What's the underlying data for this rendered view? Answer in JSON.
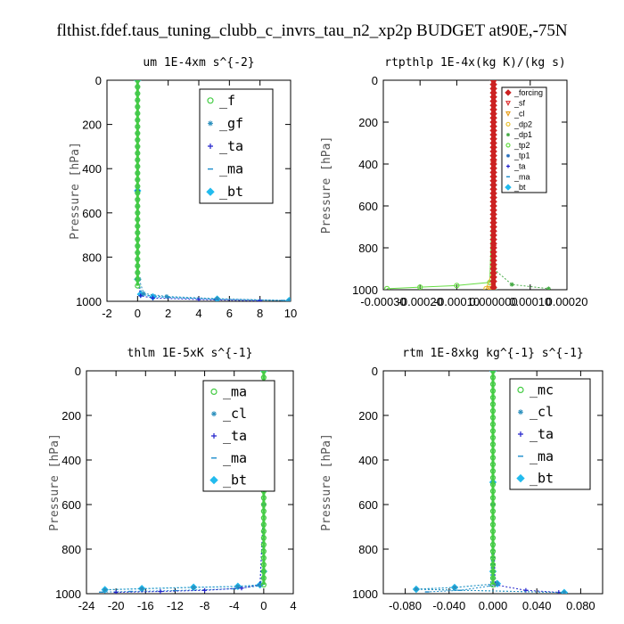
{
  "figure_title": "flthist.fdef.taus_tuning_clubb_c_invrs_tau_n2_xp2p  BUDGET at90E,-75N",
  "chart_data": [
    {
      "type": "line",
      "title": "um   1E-4xm s^{-2}",
      "ylabel": "Pressure [hPa]",
      "xlim": [
        -2,
        10
      ],
      "ylim": [
        1000,
        0
      ],
      "xticks": [
        "-2",
        "0",
        "2",
        "4",
        "6",
        "8",
        "10"
      ],
      "yticks": [
        "0",
        "200",
        "400",
        "600",
        "800",
        "1000"
      ],
      "legend_style": "big",
      "series": [
        {
          "name": "_f",
          "color": "#44cc44",
          "marker": "circle",
          "x": [
            0,
            0,
            0,
            0,
            0,
            0,
            0,
            0,
            0,
            0,
            0,
            0,
            0,
            0,
            0,
            0,
            0,
            0,
            0,
            0,
            0,
            0,
            0,
            0,
            0,
            0,
            0,
            0,
            0,
            0,
            0,
            0
          ],
          "y": [
            0,
            30,
            60,
            90,
            120,
            150,
            180,
            210,
            240,
            270,
            300,
            330,
            360,
            390,
            420,
            450,
            480,
            510,
            540,
            570,
            600,
            630,
            660,
            690,
            720,
            750,
            780,
            810,
            840,
            870,
            900,
            930
          ]
        },
        {
          "name": "_gf",
          "color": "#2a8fbd",
          "marker": "asterisk",
          "x": [
            0,
            0,
            0,
            0,
            0,
            0,
            0,
            0,
            0,
            0,
            0,
            0,
            0,
            0,
            0,
            0,
            0,
            0,
            0,
            0,
            0,
            0,
            0,
            0,
            0,
            0,
            0,
            0,
            0,
            0,
            0.1,
            0.4,
            1.9,
            5.2,
            9.9
          ],
          "y": [
            0,
            30,
            60,
            90,
            120,
            150,
            180,
            210,
            240,
            270,
            300,
            330,
            360,
            390,
            420,
            450,
            480,
            510,
            540,
            570,
            600,
            630,
            660,
            690,
            720,
            750,
            780,
            810,
            840,
            870,
            900,
            965,
            978,
            988,
            997
          ]
        },
        {
          "name": "_ta",
          "color": "#2222cc",
          "marker": "plus",
          "x": [
            0,
            0,
            0,
            0.2,
            1.0,
            4.0,
            8.0
          ],
          "y": [
            0,
            500,
            900,
            975,
            985,
            992,
            998
          ]
        },
        {
          "name": "_ma",
          "color": "#1c8ccc",
          "marker": "dash",
          "x": [
            0,
            0,
            0,
            0.3,
            2.0,
            5.0,
            9.5
          ],
          "y": [
            0,
            500,
            900,
            970,
            982,
            990,
            996
          ]
        },
        {
          "name": "_bt",
          "color": "#22bbee",
          "marker": "diamond",
          "x": [
            0,
            0,
            0,
            0.2,
            1.0,
            5.2,
            9.9
          ],
          "y": [
            0,
            500,
            900,
            968,
            980,
            990,
            997
          ]
        }
      ]
    },
    {
      "type": "line",
      "title": "rtpthlp   1E-4x(kg K)/(kg s)",
      "ylabel": "Pressure [hPa]",
      "xlim": [
        -0.0003,
        0.0002
      ],
      "ylim": [
        1000,
        0
      ],
      "xticks": [
        "-0.00030",
        "-0.00020",
        "-0.00010",
        "0.000000",
        "0.00010",
        "0.00020"
      ],
      "yticks": [
        "0",
        "200",
        "400",
        "600",
        "800",
        "1000"
      ],
      "legend_style": "small",
      "series": [
        {
          "name": "_forcing",
          "color": "#cc2222",
          "marker": "diamond",
          "x": [
            0,
            0,
            0,
            0,
            0,
            0,
            0,
            0,
            0,
            0,
            0,
            0,
            0,
            0,
            0,
            0,
            0,
            0,
            0,
            0,
            0,
            0,
            0,
            0,
            0,
            0,
            0,
            0,
            0,
            0,
            0,
            0,
            0,
            0,
            0,
            0,
            0,
            0,
            0,
            0,
            0,
            0,
            0,
            0,
            0,
            0,
            0,
            0,
            0,
            0
          ],
          "y": [
            0,
            20,
            40,
            60,
            80,
            100,
            120,
            140,
            160,
            180,
            200,
            220,
            240,
            260,
            280,
            300,
            320,
            340,
            360,
            380,
            400,
            420,
            440,
            460,
            480,
            500,
            520,
            540,
            560,
            580,
            600,
            620,
            640,
            660,
            680,
            700,
            720,
            740,
            760,
            780,
            800,
            820,
            840,
            860,
            880,
            900,
            920,
            940,
            960,
            990
          ]
        },
        {
          "name": "_sf",
          "color": "#dd3333",
          "marker": "triangle",
          "x": [
            0,
            0,
            0,
            0
          ],
          "y": [
            0,
            400,
            800,
            995
          ]
        },
        {
          "name": "_cl",
          "color": "#e8a020",
          "marker": "triangle",
          "x": [
            0,
            0,
            0,
            -1e-05,
            0
          ],
          "y": [
            0,
            400,
            900,
            995,
            1000
          ]
        },
        {
          "name": "_dp2",
          "color": "#e8c030",
          "marker": "circle",
          "x": [
            0,
            0,
            0,
            -2e-05,
            0
          ],
          "y": [
            0,
            400,
            900,
            995,
            1000
          ]
        },
        {
          "name": "_dp1",
          "color": "#44aa44",
          "marker": "asterisk",
          "x": [
            0,
            0,
            0,
            5e-05,
            0.00015
          ],
          "y": [
            0,
            400,
            900,
            975,
            995
          ]
        },
        {
          "name": "_tp2",
          "color": "#66dd44",
          "marker": "circle",
          "x": [
            0,
            0,
            -1e-05,
            -0.0001,
            -0.0002,
            -0.00029
          ],
          "y": [
            0,
            400,
            965,
            980,
            988,
            995
          ]
        },
        {
          "name": "_tp1",
          "color": "#2a6fbd",
          "marker": "asterisk",
          "x": [
            0,
            0,
            0
          ],
          "y": [
            0,
            500,
            1000
          ]
        },
        {
          "name": "_ta",
          "color": "#2222cc",
          "marker": "plus",
          "x": [
            0,
            0,
            0
          ],
          "y": [
            0,
            500,
            1000
          ]
        },
        {
          "name": "_ma",
          "color": "#1c8ccc",
          "marker": "dash",
          "x": [
            0,
            0,
            0
          ],
          "y": [
            0,
            500,
            1000
          ]
        },
        {
          "name": "_bt",
          "color": "#22bbee",
          "marker": "diamond",
          "x": [
            0,
            0,
            0
          ],
          "y": [
            0,
            500,
            1000
          ]
        }
      ]
    },
    {
      "type": "line",
      "title": "thlm   1E-5xK s^{-1}",
      "ylabel": "Pressure [hPa]",
      "xlim": [
        -24,
        4
      ],
      "ylim": [
        1000,
        0
      ],
      "xticks": [
        "-24",
        "-20",
        "-16",
        "-12",
        "-8",
        "-4",
        "0",
        "4"
      ],
      "yticks": [
        "0",
        "200",
        "400",
        "600",
        "800",
        "1000"
      ],
      "legend_style": "big",
      "series": [
        {
          "name": "_ma",
          "color": "#44cc44",
          "marker": "circle",
          "x": [
            0,
            0,
            0,
            0,
            0,
            0,
            0,
            0,
            0,
            0,
            0,
            0,
            0,
            0,
            0,
            0,
            0,
            0,
            0,
            0,
            0,
            0,
            0,
            0,
            0,
            0,
            0,
            0,
            0,
            0,
            0,
            0,
            0
          ],
          "y": [
            0,
            30,
            60,
            90,
            120,
            150,
            180,
            210,
            240,
            270,
            300,
            330,
            360,
            390,
            420,
            450,
            480,
            510,
            540,
            570,
            600,
            630,
            660,
            690,
            720,
            750,
            780,
            810,
            840,
            870,
            900,
            930,
            960
          ]
        },
        {
          "name": "_cl",
          "color": "#2a8fbd",
          "marker": "asterisk",
          "x": [
            0,
            0,
            0,
            -0.5,
            -3.5,
            -9.5,
            -16.5,
            -21.5
          ],
          "y": [
            0,
            500,
            900,
            962,
            968,
            972,
            978,
            983
          ]
        },
        {
          "name": "_ta",
          "color": "#2222cc",
          "marker": "plus",
          "x": [
            0,
            0,
            -0.5,
            -3,
            -8,
            -14,
            -20
          ],
          "y": [
            0,
            600,
            960,
            975,
            985,
            990,
            994
          ]
        },
        {
          "name": "_ma",
          "color": "#1c8ccc",
          "marker": "dash",
          "x": [
            0,
            0,
            -0.5,
            -4,
            -12,
            -18,
            -22
          ],
          "y": [
            0,
            600,
            965,
            978,
            986,
            990,
            993
          ]
        },
        {
          "name": "_bt",
          "color": "#22bbee",
          "marker": "diamond",
          "x": [
            0,
            0,
            0,
            -0.5,
            -3.5,
            -9.5,
            -16.5,
            -21.5
          ],
          "y": [
            0,
            500,
            900,
            960,
            967,
            971,
            977,
            982
          ]
        }
      ]
    },
    {
      "type": "line",
      "title": "rtm   1E-8xkg kg^{-1} s^{-1}",
      "ylabel": "Pressure [hPa]",
      "xlim": [
        -0.1,
        0.1
      ],
      "ylim": [
        1000,
        0
      ],
      "xticks": [
        "-0.080",
        "-0.040",
        "0.000",
        "0.040",
        "0.080"
      ],
      "yticks": [
        "0",
        "200",
        "400",
        "600",
        "800",
        "1000"
      ],
      "legend_style": "big",
      "series": [
        {
          "name": "_mc",
          "color": "#44cc44",
          "marker": "circle",
          "x": [
            0,
            0,
            0,
            0,
            0,
            0,
            0,
            0,
            0,
            0,
            0,
            0,
            0,
            0,
            0,
            0,
            0,
            0,
            0,
            0,
            0,
            0,
            0,
            0,
            0,
            0,
            0,
            0,
            0,
            0,
            0,
            0,
            0
          ],
          "y": [
            0,
            30,
            60,
            90,
            120,
            150,
            180,
            210,
            240,
            270,
            300,
            330,
            360,
            390,
            420,
            450,
            480,
            510,
            540,
            570,
            600,
            630,
            660,
            690,
            720,
            750,
            780,
            810,
            840,
            870,
            900,
            930,
            960
          ]
        },
        {
          "name": "_cl",
          "color": "#2a8fbd",
          "marker": "asterisk",
          "x": [
            0,
            0,
            0,
            0.004,
            -0.035,
            -0.07,
            0.065
          ],
          "y": [
            0,
            500,
            900,
            955,
            972,
            980,
            995
          ]
        },
        {
          "name": "_ta",
          "color": "#2222cc",
          "marker": "plus",
          "x": [
            0,
            0,
            0.002,
            0.03,
            0.06
          ],
          "y": [
            0,
            600,
            960,
            985,
            994
          ]
        },
        {
          "name": "_ma",
          "color": "#1c8ccc",
          "marker": "dash",
          "x": [
            0,
            0,
            -0.002,
            -0.03,
            -0.06
          ],
          "y": [
            0,
            600,
            965,
            985,
            992
          ]
        },
        {
          "name": "_bt",
          "color": "#22bbee",
          "marker": "diamond",
          "x": [
            0,
            0,
            0,
            0.004,
            -0.035,
            -0.07,
            0.065
          ],
          "y": [
            0,
            500,
            900,
            955,
            972,
            980,
            995
          ]
        }
      ]
    }
  ]
}
